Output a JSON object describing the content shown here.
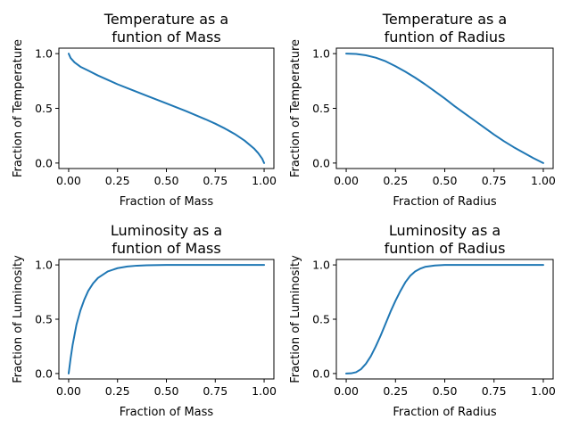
{
  "chart_data": [
    {
      "type": "line",
      "title_lines": [
        "Temperature as a",
        " funtion of Mass"
      ],
      "xlabel": "Fraction of Mass",
      "ylabel": "Fraction of Temperature",
      "xlim": [
        -0.05,
        1.05
      ],
      "ylim": [
        -0.05,
        1.05
      ],
      "xticks": [
        "0.00",
        "0.25",
        "0.50",
        "0.75",
        "1.00"
      ],
      "yticks": [
        "0.0",
        "0.5",
        "1.0"
      ],
      "grid": false,
      "color": "#1f77b4",
      "x": [
        0,
        0.01,
        0.03,
        0.06,
        0.1,
        0.15,
        0.2,
        0.25,
        0.3,
        0.4,
        0.5,
        0.6,
        0.7,
        0.75,
        0.8,
        0.85,
        0.9,
        0.95,
        0.97,
        0.99,
        1.0
      ],
      "y": [
        1.0,
        0.96,
        0.92,
        0.88,
        0.845,
        0.8,
        0.76,
        0.72,
        0.685,
        0.615,
        0.545,
        0.475,
        0.4,
        0.36,
        0.315,
        0.265,
        0.205,
        0.13,
        0.09,
        0.04,
        0.0
      ]
    },
    {
      "type": "line",
      "title_lines": [
        "Temperature as a",
        " funtion of Radius"
      ],
      "xlabel": "Fraction of Radius",
      "ylabel": "Fraction of Temperature",
      "xlim": [
        -0.05,
        1.05
      ],
      "ylim": [
        -0.05,
        1.05
      ],
      "xticks": [
        "0.00",
        "0.25",
        "0.50",
        "0.75",
        "1.00"
      ],
      "yticks": [
        "0.0",
        "0.5",
        "1.0"
      ],
      "grid": false,
      "color": "#1f77b4",
      "x": [
        0,
        0.05,
        0.1,
        0.15,
        0.2,
        0.25,
        0.3,
        0.35,
        0.4,
        0.45,
        0.5,
        0.55,
        0.6,
        0.65,
        0.7,
        0.75,
        0.8,
        0.85,
        0.9,
        0.95,
        1.0
      ],
      "y": [
        1.0,
        0.997,
        0.985,
        0.963,
        0.93,
        0.885,
        0.835,
        0.78,
        0.72,
        0.655,
        0.59,
        0.52,
        0.455,
        0.39,
        0.325,
        0.26,
        0.2,
        0.145,
        0.095,
        0.045,
        0.0
      ]
    },
    {
      "type": "line",
      "title_lines": [
        "Luminosity as a",
        " funtion of Mass"
      ],
      "xlabel": "Fraction of Mass",
      "ylabel": "Fraction of Luminosity",
      "xlim": [
        -0.05,
        1.05
      ],
      "ylim": [
        -0.05,
        1.05
      ],
      "xticks": [
        "0.00",
        "0.25",
        "0.50",
        "0.75",
        "1.00"
      ],
      "yticks": [
        "0.0",
        "0.5",
        "1.0"
      ],
      "grid": false,
      "color": "#1f77b4",
      "x": [
        0,
        0.01,
        0.02,
        0.04,
        0.06,
        0.08,
        0.1,
        0.125,
        0.15,
        0.2,
        0.25,
        0.3,
        0.35,
        0.4,
        0.5,
        0.6,
        0.75,
        1.0
      ],
      "y": [
        0.0,
        0.14,
        0.26,
        0.45,
        0.58,
        0.68,
        0.76,
        0.83,
        0.88,
        0.94,
        0.97,
        0.985,
        0.993,
        0.997,
        1.0,
        1.0,
        1.0,
        1.0
      ]
    },
    {
      "type": "line",
      "title_lines": [
        "Luminosity as a",
        " funtion of Radius"
      ],
      "xlabel": "Fraction of Radius",
      "ylabel": "Fraction of Luminosity",
      "xlim": [
        -0.05,
        1.05
      ],
      "ylim": [
        -0.05,
        1.05
      ],
      "xticks": [
        "0.00",
        "0.25",
        "0.50",
        "0.75",
        "1.00"
      ],
      "yticks": [
        "0.0",
        "0.5",
        "1.0"
      ],
      "grid": false,
      "color": "#1f77b4",
      "x": [
        0,
        0.025,
        0.05,
        0.075,
        0.1,
        0.125,
        0.15,
        0.175,
        0.2,
        0.225,
        0.25,
        0.275,
        0.3,
        0.325,
        0.35,
        0.375,
        0.4,
        0.45,
        0.5,
        0.6,
        0.75,
        1.0
      ],
      "y": [
        0.0,
        0.002,
        0.012,
        0.04,
        0.09,
        0.16,
        0.25,
        0.35,
        0.46,
        0.57,
        0.67,
        0.76,
        0.84,
        0.9,
        0.94,
        0.965,
        0.982,
        0.995,
        1.0,
        1.0,
        1.0,
        1.0
      ]
    }
  ]
}
